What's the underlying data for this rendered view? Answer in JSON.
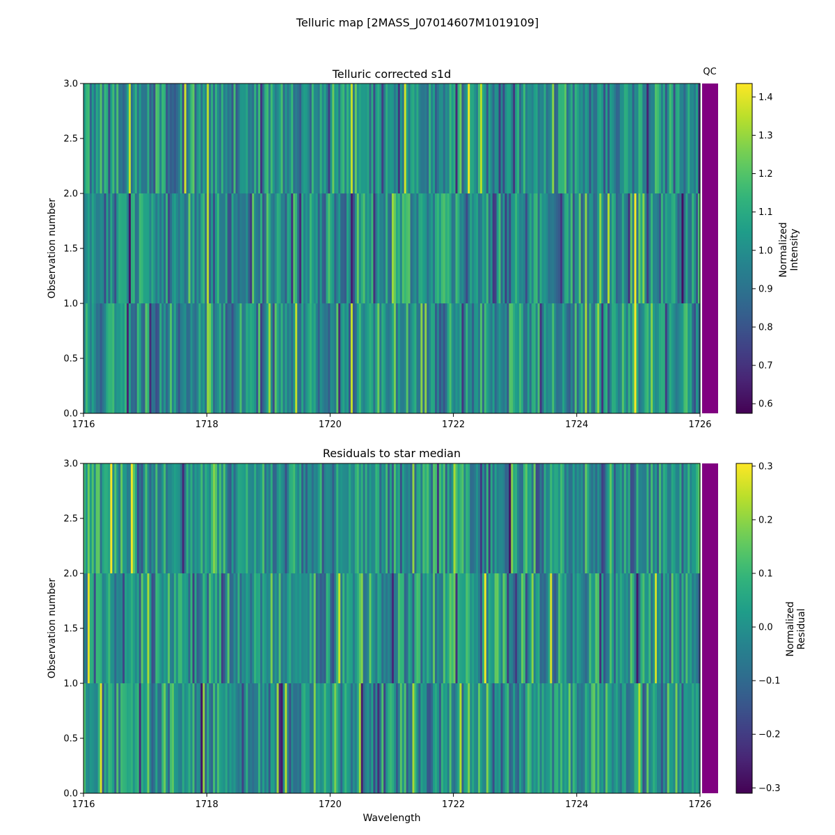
{
  "figure": {
    "title": "Telluric map [2MASS_J07014607M1019109]"
  },
  "chart_data": [
    {
      "type": "heatmap",
      "title": "Telluric corrected s1d",
      "xlabel": "",
      "ylabel": "Observation number",
      "xlim": [
        1716,
        1726
      ],
      "ylim": [
        0.0,
        3.0
      ],
      "x_ticks": [
        1716,
        1718,
        1720,
        1722,
        1724,
        1726
      ],
      "x_tick_labels": [
        "1716",
        "1718",
        "1720",
        "1722",
        "1724",
        "1726"
      ],
      "y_ticks": [
        0.0,
        0.5,
        1.0,
        1.5,
        2.0,
        2.5,
        3.0
      ],
      "y_tick_labels": [
        "0.0",
        "0.5",
        "1.0",
        "1.5",
        "2.0",
        "2.5",
        "3.0"
      ],
      "rows": 3,
      "columns": 300,
      "seed": 11,
      "value_mean": 1.0,
      "value_spread": 0.13,
      "colorbar": {
        "label_line1": "Normalized",
        "label_line2": "Intensity",
        "range": [
          0.575,
          1.435
        ],
        "ticks": [
          0.6,
          0.7,
          0.8,
          0.9,
          1.0,
          1.1,
          1.2,
          1.3,
          1.4
        ],
        "tick_labels": [
          "0.6",
          "0.7",
          "0.8",
          "0.9",
          "1.0",
          "1.1",
          "1.2",
          "1.3",
          "1.4"
        ]
      },
      "qc": {
        "label": "QC",
        "color": "#800080"
      },
      "features": [
        {
          "x": 1716.75,
          "rows": [
            1
          ],
          "value": 0.62
        },
        {
          "x": 1716.7,
          "rows": [
            0
          ],
          "value": 0.66
        },
        {
          "x": 1718.0,
          "rows": [
            1,
            2
          ],
          "value": 1.35
        },
        {
          "x": 1720.35,
          "rows": [
            0,
            2
          ],
          "value": 1.36
        },
        {
          "x": 1721.2,
          "rows": [
            2
          ],
          "value": 1.38
        },
        {
          "x": 1722.25,
          "rows": [
            2
          ],
          "value": 1.42
        },
        {
          "x": 1724.95,
          "rows": [
            0,
            1
          ],
          "value": 1.43
        }
      ]
    },
    {
      "type": "heatmap",
      "title": "Residuals to star median",
      "xlabel": "Wavelength",
      "ylabel": "Observation number",
      "xlim": [
        1716,
        1726
      ],
      "ylim": [
        0.0,
        3.0
      ],
      "x_ticks": [
        1716,
        1718,
        1720,
        1722,
        1724,
        1726
      ],
      "x_tick_labels": [
        "1716",
        "1718",
        "1720",
        "1722",
        "1724",
        "1726"
      ],
      "y_ticks": [
        0.0,
        0.5,
        1.0,
        1.5,
        2.0,
        2.5,
        3.0
      ],
      "y_tick_labels": [
        "0.0",
        "0.5",
        "1.0",
        "1.5",
        "2.0",
        "2.5",
        "3.0"
      ],
      "rows": 3,
      "columns": 300,
      "seed": 29,
      "value_mean": 0.0,
      "value_spread": 0.09,
      "colorbar": {
        "label_line1": "Normalized",
        "label_line2": "Residual",
        "range": [
          -0.31,
          0.305
        ],
        "ticks": [
          -0.3,
          -0.2,
          -0.1,
          0.0,
          0.1,
          0.2,
          0.3
        ],
        "tick_labels": [
          "−0.3",
          "−0.2",
          "−0.1",
          "0.0",
          "0.1",
          "0.2",
          "0.3"
        ]
      },
      "qc": {
        "label": "",
        "color": "#800080"
      },
      "features": [
        {
          "x": 1716.1,
          "rows": [
            1
          ],
          "value": 0.28
        },
        {
          "x": 1716.3,
          "rows": [
            0
          ],
          "value": 0.27
        },
        {
          "x": 1716.8,
          "rows": [
            2
          ],
          "value": 0.29
        },
        {
          "x": 1717.9,
          "rows": [
            0
          ],
          "value": -0.28
        },
        {
          "x": 1719.2,
          "rows": [
            0
          ],
          "value": -0.27
        },
        {
          "x": 1720.5,
          "rows": [
            0
          ],
          "value": -0.26
        },
        {
          "x": 1722.9,
          "rows": [
            2
          ],
          "value": -0.29
        },
        {
          "x": 1723.6,
          "rows": [
            1
          ],
          "value": 0.27
        },
        {
          "x": 1725.3,
          "rows": [
            1
          ],
          "value": 0.26
        }
      ]
    }
  ]
}
